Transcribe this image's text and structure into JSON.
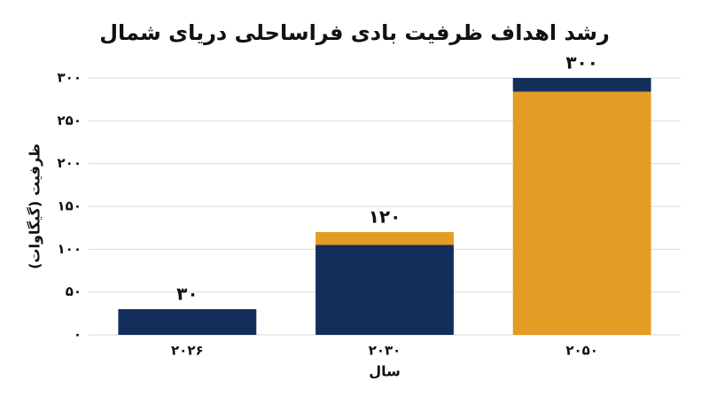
{
  "chart_data": {
    "type": "stacked_bar",
    "title": "رشد اهداف ظرفیت بادی فراساحلی دریای شمال",
    "x_label": "سال",
    "y_label": "ظرفیت (گیگاوات)",
    "categories": [
      "۲۰۲۶",
      "۲۰۳۰",
      "۲۰۵۰"
    ],
    "series": [
      {
        "color": "#142e5c",
        "values": [
          30,
          105,
          0
        ]
      },
      {
        "color": "#e49c24",
        "values": [
          0,
          15,
          284
        ]
      },
      {
        "color": "#142e5c",
        "values": [
          0,
          0,
          16
        ]
      }
    ],
    "totals": [
      30,
      120,
      300
    ],
    "total_labels": [
      "۳۰",
      "۱۲۰",
      "۳۰۰"
    ],
    "ylim": [
      0,
      300
    ],
    "yticks": [
      {
        "value": 0,
        "label": "۰"
      },
      {
        "value": 50,
        "label": "۵۰"
      },
      {
        "value": 100,
        "label": "۱۰۰"
      },
      {
        "value": 150,
        "label": "۱۵۰"
      },
      {
        "value": 200,
        "label": "۲۰۰"
      },
      {
        "value": 250,
        "label": "۲۵۰"
      },
      {
        "value": 300,
        "label": "۳۰۰"
      }
    ],
    "grid": true
  }
}
